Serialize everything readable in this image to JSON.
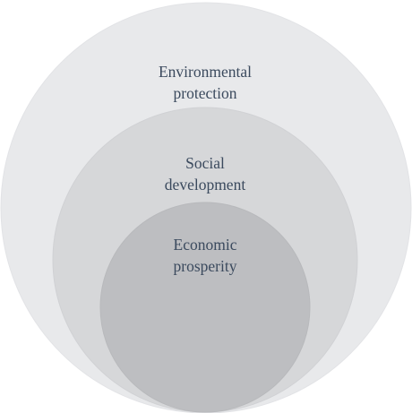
{
  "diagram": {
    "type": "nested-circles",
    "layers": [
      {
        "id": "environmental",
        "lines": [
          "Environmental",
          "protection"
        ],
        "fill": "#e8e9eb",
        "stroke": "#e2e3e6"
      },
      {
        "id": "social",
        "lines": [
          "Social",
          "development"
        ],
        "fill": "#d6d7d9",
        "stroke": "#d0d1d4"
      },
      {
        "id": "economic",
        "lines": [
          "Economic",
          "prosperity"
        ],
        "fill": "#bdbec1",
        "stroke": "#b8b9bc"
      }
    ],
    "text_color": "#3b4a5e"
  }
}
